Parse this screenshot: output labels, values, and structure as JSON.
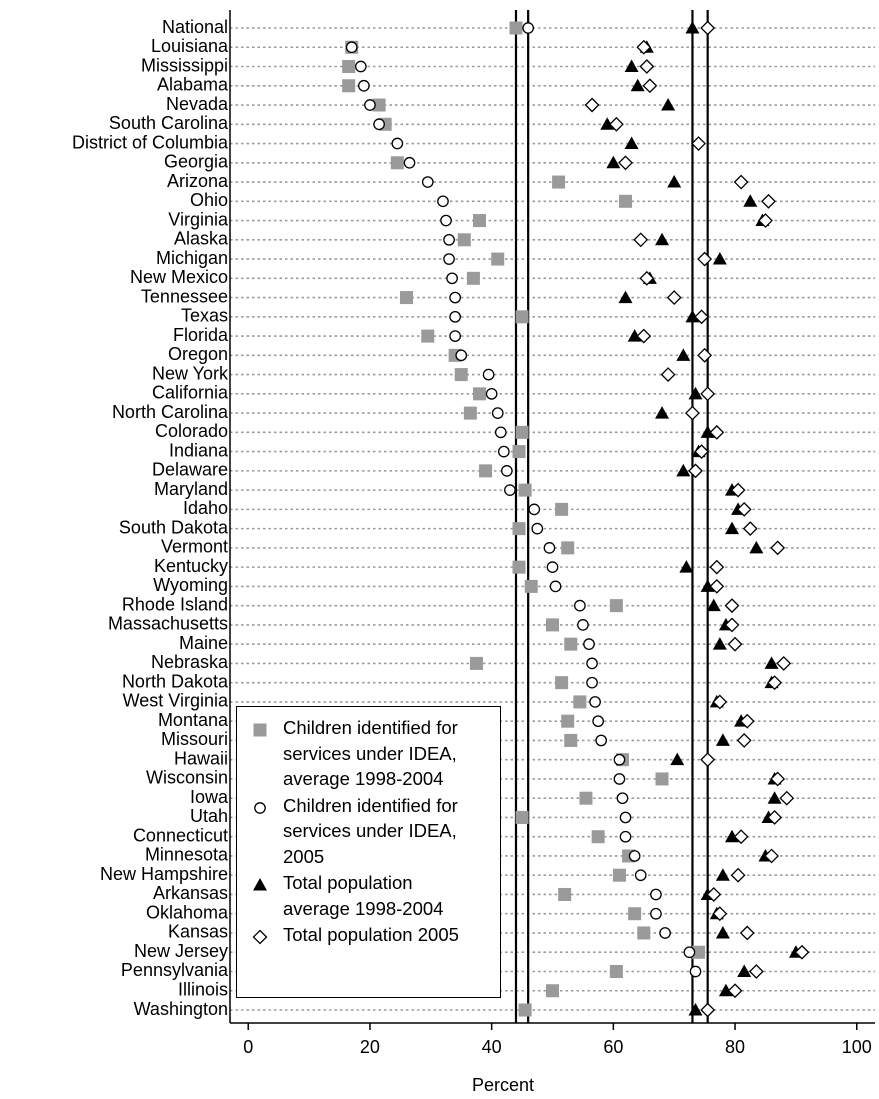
{
  "chart_data": {
    "type": "dot",
    "x_label": "Percent",
    "xlim": [
      -3,
      103
    ],
    "xticks": [
      0,
      20,
      40,
      60,
      80,
      100
    ],
    "grid": true,
    "categories": [
      "National",
      "Louisiana",
      "Mississippi",
      "Alabama",
      "Nevada",
      "South Carolina",
      "District of Columbia",
      "Georgia",
      "Arizona",
      "Ohio",
      "Virginia",
      "Alaska",
      "Michigan",
      "New Mexico",
      "Tennessee",
      "Texas",
      "Florida",
      "Oregon",
      "New York",
      "California",
      "North Carolina",
      "Colorado",
      "Indiana",
      "Delaware",
      "Maryland",
      "Idaho",
      "South Dakota",
      "Vermont",
      "Kentucky",
      "Wyoming",
      "Rhode Island",
      "Massachusetts",
      "Maine",
      "Nebraska",
      "North Dakota",
      "West Virginia",
      "Montana",
      "Missouri",
      "Hawaii",
      "Wisconsin",
      "Iowa",
      "Utah",
      "Connecticut",
      "Minnesota",
      "New Hampshire",
      "Arkansas",
      "Oklahoma",
      "Kansas",
      "New Jersey",
      "Pennsylvania",
      "Illinois",
      "Washington"
    ],
    "series": [
      {
        "name": "Children identified for services under IDEA, average 1998-2004",
        "marker": "square",
        "color": "#9a9a9a",
        "values": [
          44,
          17,
          16.5,
          16.5,
          21.5,
          22.5,
          null,
          24.5,
          51,
          62,
          38,
          35.5,
          41,
          37,
          26,
          45,
          29.5,
          34,
          35,
          38,
          36.5,
          45,
          44.5,
          39,
          45.5,
          51.5,
          44.5,
          52.5,
          44.5,
          46.5,
          60.5,
          50,
          53,
          37.5,
          51.5,
          54.5,
          52.5,
          53,
          61.5,
          68,
          55.5,
          45,
          57.5,
          62.5,
          61,
          52,
          63.5,
          65,
          74,
          60.5,
          50,
          45.5
        ]
      },
      {
        "name": "Children identified for services under IDEA, 2005",
        "marker": "circle",
        "color": "#ffffff",
        "values": [
          46,
          17,
          18.5,
          19,
          20,
          21.5,
          24.5,
          26.5,
          29.5,
          32,
          32.5,
          33,
          33,
          33.5,
          34,
          34,
          34,
          35,
          39.5,
          40,
          41,
          41.5,
          42,
          42.5,
          43,
          47,
          47.5,
          49.5,
          50,
          50.5,
          54.5,
          55,
          56,
          56.5,
          56.5,
          57,
          57.5,
          58,
          61,
          61,
          61.5,
          62,
          62,
          63.5,
          64.5,
          67,
          67,
          68.5,
          72.5,
          73.5,
          null,
          null
        ]
      },
      {
        "name": "Total population average 1998-2004",
        "marker": "triangle",
        "color": "#000000",
        "values": [
          73,
          65.5,
          63,
          64,
          69,
          59,
          63,
          60,
          70,
          82.5,
          84.5,
          68,
          77.5,
          66,
          62,
          73,
          63.5,
          71.5,
          null,
          73.5,
          68,
          75.5,
          74,
          71.5,
          79.5,
          80.5,
          79.5,
          83.5,
          72,
          75.5,
          76.5,
          78.5,
          77.5,
          86,
          86,
          77,
          81,
          78,
          70.5,
          86.5,
          86.5,
          85.5,
          79.5,
          85,
          78,
          75.5,
          77,
          78,
          90,
          81.5,
          78.5,
          73.5
        ]
      },
      {
        "name": "Total population 2005",
        "marker": "diamond",
        "color": "#ffffff",
        "values": [
          75.5,
          65,
          65.5,
          66,
          56.5,
          60.5,
          74,
          62,
          81,
          85.5,
          85,
          64.5,
          75,
          65.5,
          70,
          74.5,
          65,
          75,
          69,
          75.5,
          73,
          77,
          74.5,
          73.5,
          80.5,
          81.5,
          82.5,
          87,
          77,
          77,
          79.5,
          79.5,
          80,
          88,
          86.5,
          77.5,
          82,
          81.5,
          75.5,
          87,
          88.5,
          86.5,
          81,
          86,
          80.5,
          76.5,
          77.5,
          82,
          91,
          83.5,
          80,
          75.5
        ]
      }
    ]
  }
}
